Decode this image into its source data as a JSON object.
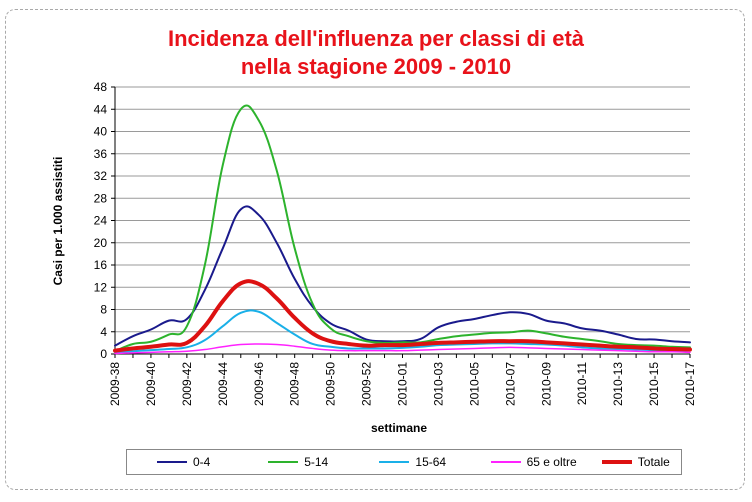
{
  "chart_data": {
    "type": "line",
    "title_line1": "Incidenza dell'influenza per classi di età",
    "title_line2": "nella stagione 2009 - 2010",
    "xlabel": "settimane",
    "ylabel": "Casi per 1.000 assistiti",
    "ylim": [
      0,
      48
    ],
    "yticks": [
      "0",
      "4",
      "8",
      "12",
      "16",
      "20",
      "24",
      "28",
      "32",
      "36",
      "40",
      "44",
      "48"
    ],
    "x_labels": [
      "2009-38",
      "2009-40",
      "2009-42",
      "2009-44",
      "2009-46",
      "2009-48",
      "2009-50",
      "2009-52",
      "2010-01",
      "2010-03",
      "2010-05",
      "2010-07",
      "2010-09",
      "2010-11",
      "2010-13",
      "2010-15",
      "2010-17"
    ],
    "x_weeks": [
      "2009-38",
      "2009-39",
      "2009-40",
      "2009-41",
      "2009-42",
      "2009-43",
      "2009-44",
      "2009-45",
      "2009-46",
      "2009-47",
      "2009-48",
      "2009-49",
      "2009-50",
      "2009-51",
      "2009-52",
      "2009-53",
      "2010-01",
      "2010-02",
      "2010-03",
      "2010-04",
      "2010-05",
      "2010-06",
      "2010-07",
      "2010-08",
      "2010-09",
      "2010-10",
      "2010-11",
      "2010-12",
      "2010-13",
      "2010-14",
      "2010-15",
      "2010-16",
      "2010-17"
    ],
    "grid": true,
    "legend_position": "bottom",
    "series": [
      {
        "name": "0-4",
        "color": "#1a1a8c",
        "width": 2,
        "values": [
          1.5,
          3.2,
          4.4,
          6.0,
          6.3,
          11.5,
          19.0,
          26.0,
          25.0,
          20.0,
          13.5,
          8.5,
          5.5,
          4.2,
          2.6,
          2.3,
          2.3,
          2.7,
          4.8,
          5.8,
          6.3,
          7.0,
          7.5,
          7.2,
          6.0,
          5.5,
          4.6,
          4.2,
          3.5,
          2.7,
          2.6,
          2.3,
          2.1
        ]
      },
      {
        "name": "5-14",
        "color": "#2db32d",
        "width": 2,
        "values": [
          0.5,
          1.8,
          2.2,
          3.5,
          5.0,
          16.0,
          34.0,
          44.0,
          42.0,
          33.0,
          19.0,
          9.0,
          4.6,
          3.2,
          2.3,
          2.0,
          2.1,
          2.1,
          2.7,
          3.2,
          3.5,
          3.8,
          3.9,
          4.2,
          3.7,
          3.1,
          2.7,
          2.3,
          1.8,
          1.6,
          1.5,
          1.3,
          1.2
        ]
      },
      {
        "name": "15-64",
        "color": "#1ab0e8",
        "width": 2,
        "values": [
          0.3,
          0.5,
          0.7,
          0.9,
          1.2,
          2.5,
          5.0,
          7.4,
          7.6,
          5.6,
          3.5,
          1.8,
          1.3,
          1.0,
          1.0,
          1.0,
          1.1,
          1.3,
          1.6,
          1.7,
          1.8,
          1.9,
          1.9,
          1.8,
          1.7,
          1.5,
          1.2,
          1.0,
          0.9,
          0.8,
          0.7,
          0.6,
          0.6
        ]
      },
      {
        "name": "65 e oltre",
        "color": "#ff22ff",
        "width": 1.5,
        "values": [
          0.1,
          0.2,
          0.3,
          0.4,
          0.5,
          0.8,
          1.3,
          1.7,
          1.8,
          1.7,
          1.4,
          1.0,
          0.7,
          0.6,
          0.6,
          0.6,
          0.6,
          0.7,
          0.8,
          0.9,
          1.0,
          1.1,
          1.2,
          1.1,
          1.0,
          0.9,
          0.8,
          0.7,
          0.6,
          0.5,
          0.4,
          0.4,
          0.3
        ]
      },
      {
        "name": "Totale",
        "color": "#dd1111",
        "width": 4,
        "values": [
          0.6,
          1.0,
          1.3,
          1.7,
          2.0,
          5.0,
          9.5,
          12.7,
          12.6,
          10.0,
          6.5,
          3.7,
          2.3,
          1.8,
          1.5,
          1.6,
          1.6,
          1.8,
          2.0,
          2.1,
          2.2,
          2.3,
          2.3,
          2.3,
          2.1,
          1.9,
          1.7,
          1.5,
          1.3,
          1.2,
          1.0,
          0.9,
          0.8
        ]
      }
    ]
  }
}
